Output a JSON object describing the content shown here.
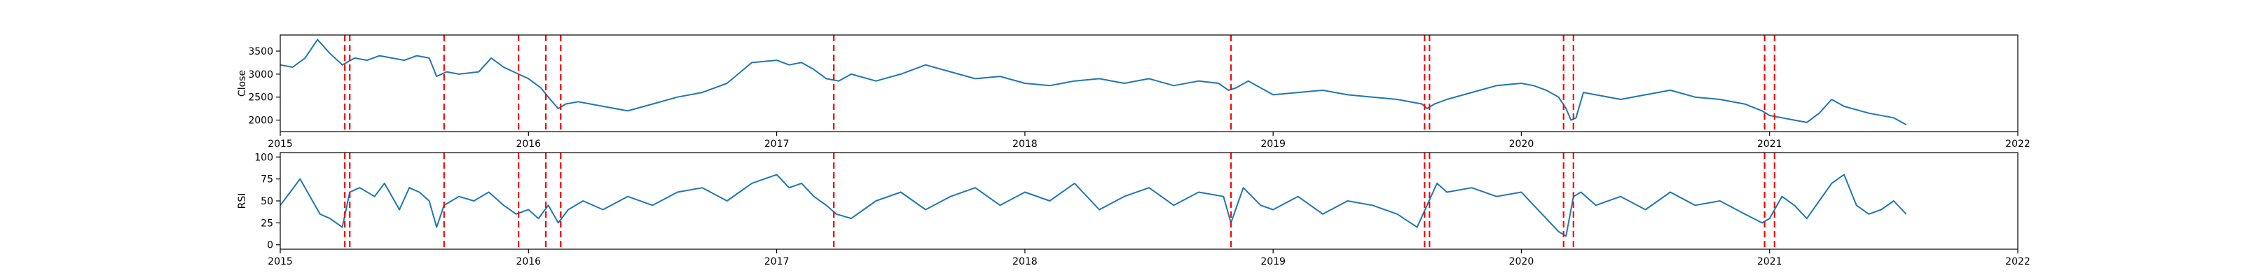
{
  "colors": {
    "line": "#1f77b4",
    "marker": "#ff0000",
    "axis": "#000000"
  },
  "chart_data": [
    {
      "type": "line",
      "ylabel": "Close",
      "xlabel": "",
      "xlim": [
        2015.0,
        2022.0
      ],
      "ylim": [
        1750,
        3850
      ],
      "grid": false,
      "x_ticks": [
        {
          "v": 2015,
          "label": "2015"
        },
        {
          "v": 2016,
          "label": "2016"
        },
        {
          "v": 2017,
          "label": "2017"
        },
        {
          "v": 2018,
          "label": "2018"
        },
        {
          "v": 2019,
          "label": "2019"
        },
        {
          "v": 2020,
          "label": "2020"
        },
        {
          "v": 2021,
          "label": "2021"
        },
        {
          "v": 2022,
          "label": "2022"
        }
      ],
      "y_ticks": [
        {
          "v": 2000,
          "label": "2000"
        },
        {
          "v": 2500,
          "label": "2500"
        },
        {
          "v": 3000,
          "label": "3000"
        },
        {
          "v": 3500,
          "label": "3500"
        }
      ],
      "series": [
        {
          "x": [
            2015.0,
            2015.05,
            2015.1,
            2015.15,
            2015.2,
            2015.25,
            2015.3,
            2015.35,
            2015.4,
            2015.45,
            2015.5,
            2015.55,
            2015.6,
            2015.63,
            2015.67,
            2015.72,
            2015.8,
            2015.85,
            2015.9,
            2015.96,
            2016.0,
            2016.05,
            2016.08,
            2016.12,
            2016.15,
            2016.2,
            2016.3,
            2016.4,
            2016.5,
            2016.6,
            2016.7,
            2016.8,
            2016.9,
            2017.0,
            2017.05,
            2017.1,
            2017.15,
            2017.2,
            2017.25,
            2017.3,
            2017.4,
            2017.5,
            2017.6,
            2017.7,
            2017.8,
            2017.9,
            2018.0,
            2018.1,
            2018.2,
            2018.3,
            2018.4,
            2018.5,
            2018.6,
            2018.7,
            2018.78,
            2018.82,
            2018.85,
            2018.9,
            2019.0,
            2019.1,
            2019.2,
            2019.3,
            2019.4,
            2019.5,
            2019.6,
            2019.62,
            2019.65,
            2019.7,
            2019.8,
            2019.9,
            2020.0,
            2020.05,
            2020.1,
            2020.15,
            2020.18,
            2020.2,
            2020.22,
            2020.25,
            2020.3,
            2020.4,
            2020.5,
            2020.6,
            2020.7,
            2020.8,
            2020.9,
            2020.97,
            2021.0,
            2021.05,
            2021.1,
            2021.15,
            2021.2,
            2021.25,
            2021.3,
            2021.4,
            2021.5,
            2021.55
          ],
          "values": [
            3200,
            3150,
            3350,
            3750,
            3450,
            3200,
            3350,
            3300,
            3400,
            3350,
            3300,
            3400,
            3350,
            2950,
            3050,
            3000,
            3050,
            3350,
            3150,
            3000,
            2900,
            2700,
            2500,
            2250,
            2350,
            2400,
            2300,
            2200,
            2350,
            2500,
            2600,
            2800,
            3250,
            3300,
            3200,
            3250,
            3100,
            2900,
            2850,
            3000,
            2850,
            3000,
            3200,
            3050,
            2900,
            2950,
            2800,
            2750,
            2850,
            2900,
            2800,
            2900,
            2750,
            2850,
            2800,
            2650,
            2700,
            2850,
            2550,
            2600,
            2650,
            2550,
            2500,
            2450,
            2350,
            2250,
            2350,
            2450,
            2600,
            2750,
            2800,
            2750,
            2650,
            2500,
            2250,
            2000,
            2050,
            2600,
            2550,
            2450,
            2550,
            2650,
            2500,
            2450,
            2350,
            2200,
            2100,
            2050,
            2000,
            1950,
            2150,
            2450,
            2300,
            2150,
            2050,
            1900
          ]
        }
      ]
    },
    {
      "type": "line",
      "ylabel": "RSI",
      "xlabel": "",
      "xlim": [
        2015.0,
        2022.0
      ],
      "ylim": [
        -5,
        105
      ],
      "grid": false,
      "x_ticks": [
        {
          "v": 2015,
          "label": "2015"
        },
        {
          "v": 2016,
          "label": "2016"
        },
        {
          "v": 2017,
          "label": "2017"
        },
        {
          "v": 2018,
          "label": "2018"
        },
        {
          "v": 2019,
          "label": "2019"
        },
        {
          "v": 2020,
          "label": "2020"
        },
        {
          "v": 2021,
          "label": "2021"
        },
        {
          "v": 2022,
          "label": "2022"
        }
      ],
      "y_ticks": [
        {
          "v": 0,
          "label": "0"
        },
        {
          "v": 25,
          "label": "25"
        },
        {
          "v": 50,
          "label": "50"
        },
        {
          "v": 75,
          "label": "75"
        },
        {
          "v": 100,
          "label": "100"
        }
      ],
      "series": [
        {
          "x": [
            2015.0,
            2015.04,
            2015.08,
            2015.12,
            2015.16,
            2015.2,
            2015.25,
            2015.28,
            2015.32,
            2015.38,
            2015.42,
            2015.48,
            2015.52,
            2015.56,
            2015.6,
            2015.63,
            2015.66,
            2015.72,
            2015.78,
            2015.84,
            2015.9,
            2015.95,
            2016.0,
            2016.04,
            2016.08,
            2016.12,
            2016.16,
            2016.22,
            2016.3,
            2016.4,
            2016.5,
            2016.6,
            2016.7,
            2016.8,
            2016.9,
            2017.0,
            2017.05,
            2017.1,
            2017.15,
            2017.2,
            2017.24,
            2017.3,
            2017.4,
            2017.5,
            2017.6,
            2017.7,
            2017.8,
            2017.9,
            2018.0,
            2018.1,
            2018.2,
            2018.3,
            2018.4,
            2018.5,
            2018.6,
            2018.7,
            2018.8,
            2018.83,
            2018.88,
            2018.95,
            2019.0,
            2019.1,
            2019.2,
            2019.3,
            2019.4,
            2019.5,
            2019.58,
            2019.62,
            2019.66,
            2019.7,
            2019.8,
            2019.9,
            2020.0,
            2020.05,
            2020.1,
            2020.15,
            2020.18,
            2020.21,
            2020.24,
            2020.3,
            2020.4,
            2020.5,
            2020.6,
            2020.7,
            2020.8,
            2020.9,
            2020.97,
            2021.0,
            2021.05,
            2021.1,
            2021.15,
            2021.2,
            2021.25,
            2021.3,
            2021.35,
            2021.4,
            2021.45,
            2021.5,
            2021.55
          ],
          "values": [
            45,
            60,
            75,
            55,
            35,
            30,
            20,
            60,
            65,
            55,
            70,
            40,
            65,
            60,
            50,
            20,
            45,
            55,
            50,
            60,
            45,
            35,
            40,
            30,
            45,
            25,
            40,
            50,
            40,
            55,
            45,
            60,
            65,
            50,
            70,
            80,
            65,
            70,
            55,
            45,
            35,
            30,
            50,
            60,
            40,
            55,
            65,
            45,
            60,
            50,
            70,
            40,
            55,
            65,
            45,
            60,
            55,
            25,
            65,
            45,
            40,
            55,
            35,
            50,
            45,
            35,
            20,
            45,
            70,
            60,
            65,
            55,
            60,
            45,
            30,
            15,
            10,
            55,
            60,
            45,
            55,
            40,
            60,
            45,
            50,
            35,
            25,
            30,
            55,
            45,
            30,
            50,
            70,
            80,
            45,
            35,
            40,
            50,
            35
          ]
        }
      ]
    }
  ],
  "event_markers": [
    2015.26,
    2015.28,
    2015.66,
    2015.96,
    2016.07,
    2016.13,
    2017.23,
    2018.83,
    2019.61,
    2019.63,
    2020.17,
    2020.21,
    2020.98,
    2021.02
  ]
}
